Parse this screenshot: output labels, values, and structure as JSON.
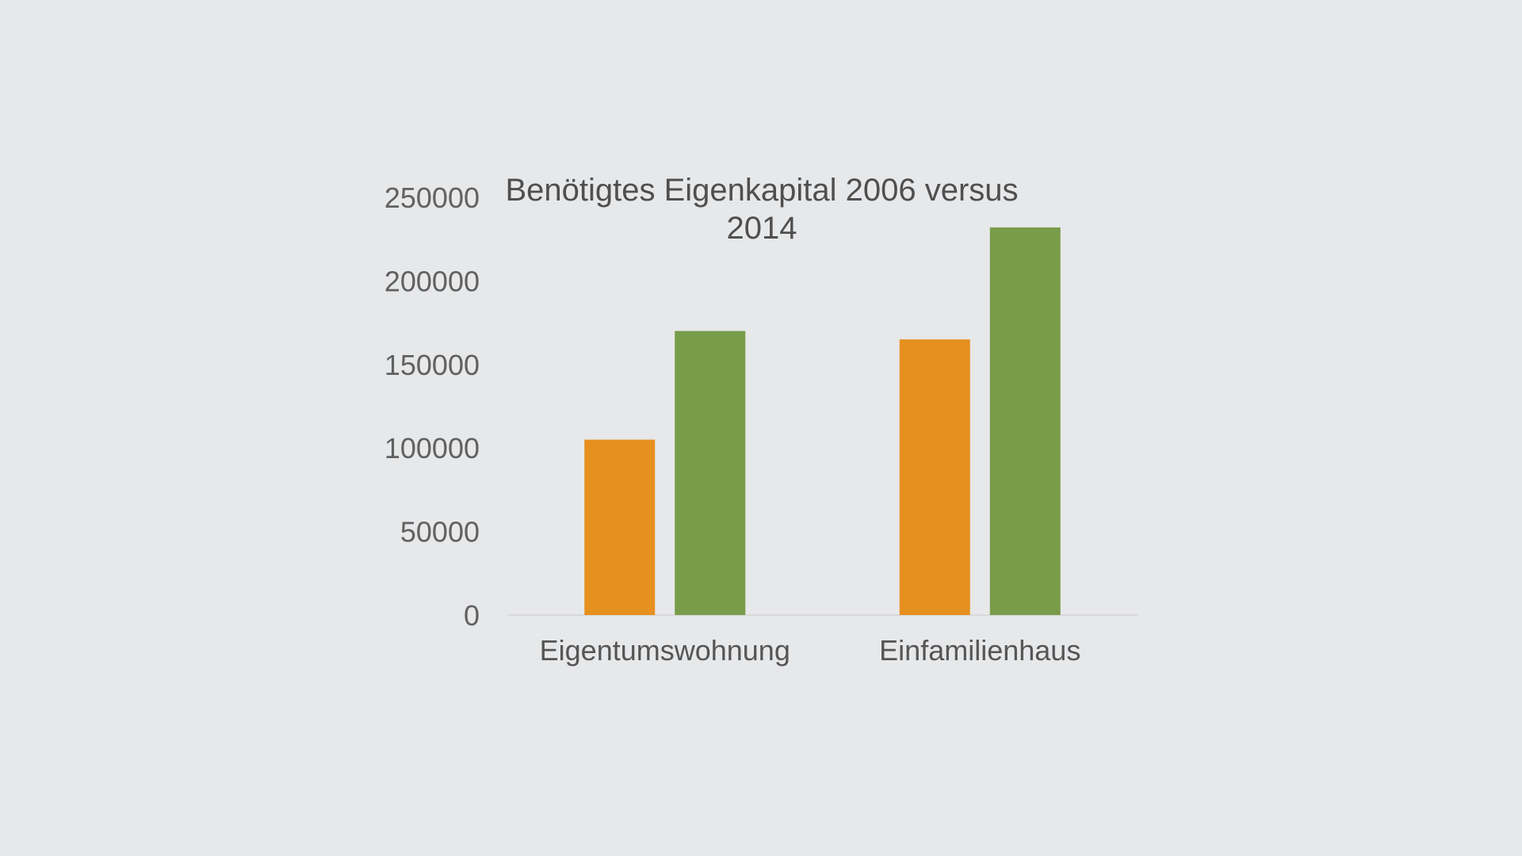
{
  "chart_data": {
    "type": "bar",
    "title_lines": [
      "Benötigtes Eigenkapital 2006 versus",
      "2014"
    ],
    "title": "Benötigtes Eigenkapital 2006 versus 2014",
    "xlabel": "",
    "ylabel": "",
    "categories": [
      "Eigentumswohnung",
      "Einfamilienhaus"
    ],
    "series": [
      {
        "color": "#e69020",
        "values": [
          105000,
          165000
        ]
      },
      {
        "color": "#789c4a",
        "values": [
          170000,
          232000
        ]
      }
    ],
    "ylim": [
      0,
      250000
    ],
    "yticks": [
      0,
      50000,
      100000,
      150000,
      200000,
      250000
    ],
    "ytick_labels": [
      "0",
      "50000",
      "100000",
      "150000",
      "200000",
      "250000"
    ],
    "grid": false,
    "legend": "none",
    "axis_color": "#d9d9d9"
  }
}
